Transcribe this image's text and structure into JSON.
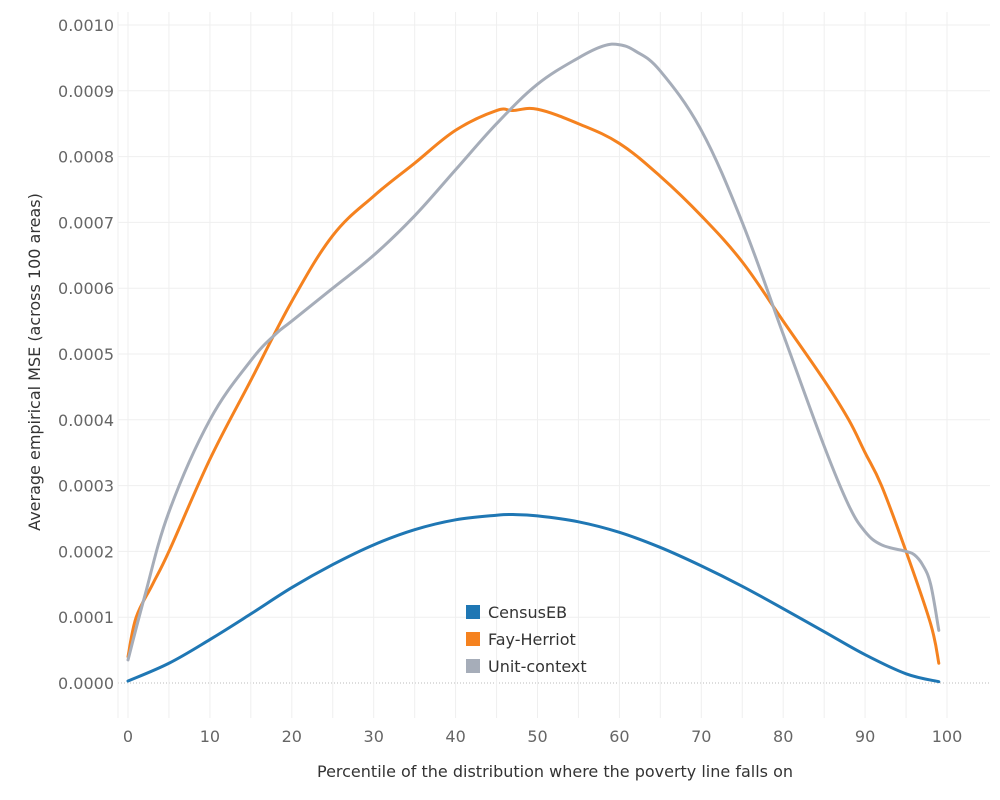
{
  "chart_data": {
    "type": "line",
    "xlabel": "Percentile of the distribution where the poverty line falls on",
    "ylabel": "Average empirical MSE (across 100 areas)",
    "xlim": [
      0,
      100
    ],
    "ylim": [
      0,
      0.001
    ],
    "x_ticks": [
      0,
      10,
      20,
      30,
      40,
      50,
      60,
      70,
      80,
      90,
      100
    ],
    "y_ticks": [
      0.0,
      0.0001,
      0.0002,
      0.0003,
      0.0004,
      0.0005,
      0.0006,
      0.0007,
      0.0008,
      0.0009,
      0.001
    ],
    "y_tick_labels": [
      "0.0000",
      "0.0001",
      "0.0002",
      "0.0003",
      "0.0004",
      "0.0005",
      "0.0006",
      "0.0007",
      "0.0008",
      "0.0009",
      "0.0010"
    ],
    "grid": true,
    "legend_position": "bottom-center",
    "series": [
      {
        "name": "CensusEB",
        "color": "#1f77b4",
        "x": [
          0,
          5,
          10,
          15,
          20,
          25,
          30,
          35,
          40,
          45,
          47,
          50,
          55,
          60,
          65,
          70,
          75,
          80,
          85,
          90,
          95,
          99
        ],
        "y": [
          3e-06,
          3e-05,
          6.6e-05,
          0.000105,
          0.000145,
          0.00018,
          0.00021,
          0.000233,
          0.000248,
          0.000255,
          0.000256,
          0.000254,
          0.000245,
          0.000229,
          0.000206,
          0.000178,
          0.000147,
          0.000113,
          7.8e-05,
          4.3e-05,
          1.4e-05,
          2e-06
        ]
      },
      {
        "name": "Fay-Herriot",
        "color": "#f5821f",
        "x": [
          0,
          1,
          3,
          5,
          10,
          15,
          20,
          25,
          30,
          35,
          40,
          45,
          47,
          50,
          55,
          60,
          65,
          70,
          75,
          80,
          85,
          88,
          90,
          92,
          95,
          98,
          99
        ],
        "y": [
          4e-05,
          0.0001,
          0.00015,
          0.0002,
          0.00034,
          0.00046,
          0.00058,
          0.00068,
          0.00074,
          0.00079,
          0.00084,
          0.00087,
          0.00087,
          0.000872,
          0.00085,
          0.00082,
          0.00077,
          0.00071,
          0.00064,
          0.00055,
          0.00046,
          0.0004,
          0.00035,
          0.0003,
          0.0002,
          9e-05,
          3e-05
        ]
      },
      {
        "name": "Unit-context",
        "color": "#a6adb9",
        "x": [
          0,
          2,
          5,
          10,
          15,
          18,
          20,
          25,
          30,
          35,
          40,
          45,
          50,
          55,
          58,
          60,
          62,
          65,
          70,
          75,
          80,
          85,
          88,
          90,
          92,
          95,
          96,
          97,
          98,
          99
        ],
        "y": [
          3.5e-05,
          0.00013,
          0.00026,
          0.0004,
          0.00049,
          0.00053,
          0.00055,
          0.0006,
          0.00065,
          0.00071,
          0.00078,
          0.00085,
          0.00091,
          0.00095,
          0.000968,
          0.00097,
          0.00096,
          0.00093,
          0.00084,
          0.0007,
          0.00053,
          0.00036,
          0.00027,
          0.00023,
          0.00021,
          0.0002,
          0.000195,
          0.00018,
          0.00015,
          8e-05
        ]
      }
    ]
  }
}
